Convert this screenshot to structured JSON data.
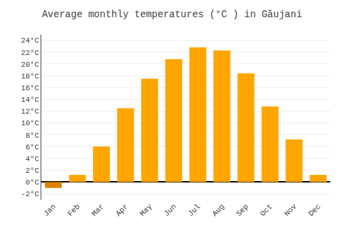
{
  "chart_data": {
    "type": "bar",
    "title": "Average monthly temperatures (°C ) in Găujani",
    "categories": [
      "Jan",
      "Feb",
      "Mar",
      "Apr",
      "May",
      "Jun",
      "Jul",
      "Aug",
      "Sep",
      "Oct",
      "Nov",
      "Dec"
    ],
    "values": [
      -1.0,
      1.2,
      6.0,
      12.5,
      17.5,
      20.8,
      22.8,
      22.3,
      18.4,
      12.8,
      7.2,
      1.2
    ],
    "colors": [
      "#E08000",
      "#FFA500",
      "#FFA500",
      "#FFA500",
      "#FFA500",
      "#FFA500",
      "#FFA500",
      "#FFA500",
      "#FFA500",
      "#FFA500",
      "#FFA500",
      "#FFA500"
    ],
    "ylim": [
      -3,
      25
    ],
    "yticks": [
      {
        "value": -2,
        "label": "-2°C"
      },
      {
        "value": 0,
        "label": "0°C"
      },
      {
        "value": 2,
        "label": "2°C"
      },
      {
        "value": 4,
        "label": "4°C"
      },
      {
        "value": 6,
        "label": "6°C"
      },
      {
        "value": 8,
        "label": "8°C"
      },
      {
        "value": 10,
        "label": "10°C"
      },
      {
        "value": 12,
        "label": "12°C"
      },
      {
        "value": 14,
        "label": "14°C"
      },
      {
        "value": 16,
        "label": "16°C"
      },
      {
        "value": 18,
        "label": "18°C"
      },
      {
        "value": 20,
        "label": "20°C"
      },
      {
        "value": 22,
        "label": "22°C"
      },
      {
        "value": 24,
        "label": "24°C"
      }
    ],
    "grid": true
  }
}
